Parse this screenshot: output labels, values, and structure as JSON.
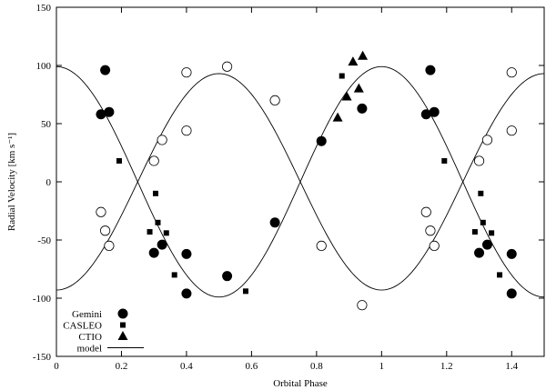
{
  "chart_data": {
    "type": "scatter",
    "title": "",
    "xlabel": "Orbital Phase",
    "ylabel": "Radial Velocity [km s⁻¹]",
    "xlim": [
      0,
      1.5
    ],
    "ylim": [
      -150,
      150
    ],
    "xticks": [
      0,
      0.2,
      0.4,
      0.6,
      0.8,
      1,
      1.2,
      1.4
    ],
    "xtick_labels": [
      "0",
      "0.2",
      "0.4",
      "0.6",
      "0.8",
      "1",
      "1.2",
      "1.4"
    ],
    "yticks": [
      -150,
      -100,
      -50,
      0,
      50,
      100,
      150
    ],
    "ytick_labels": [
      "-150",
      "-100",
      "-50",
      "0",
      "50",
      "100",
      "150"
    ],
    "grid": false,
    "legend_position": "bottom-left",
    "legend": [
      {
        "label": "Gemini",
        "marker": "filled-circle"
      },
      {
        "label": "CASLEO",
        "marker": "filled-square"
      },
      {
        "label": "CTIO",
        "marker": "filled-triangle"
      },
      {
        "label": "model",
        "marker": "line"
      }
    ],
    "series": [
      {
        "name": "Gemini",
        "component": "primary",
        "marker": "filled-circle",
        "x": [
          0.137,
          0.15,
          0.162,
          0.3,
          0.325,
          0.4,
          0.4,
          0.525,
          0.672,
          0.815,
          0.94,
          1.137,
          1.15,
          1.162,
          1.3,
          1.325,
          1.4,
          1.4
        ],
        "y": [
          58,
          96,
          60,
          -61,
          -54,
          -62,
          -96,
          -81,
          -35,
          35,
          63,
          58,
          96,
          60,
          -61,
          -54,
          -62,
          -96
        ]
      },
      {
        "name": "Gemini",
        "component": "secondary",
        "marker": "open-circle",
        "x": [
          0.137,
          0.15,
          0.162,
          0.3,
          0.325,
          0.4,
          0.4,
          0.525,
          0.672,
          0.815,
          0.94,
          1.137,
          1.15,
          1.162,
          1.3,
          1.325,
          1.4,
          1.4
        ],
        "y": [
          -26,
          -42,
          -55,
          18,
          36,
          94,
          44,
          99,
          70,
          -55,
          -106,
          -26,
          -42,
          -55,
          18,
          36,
          94,
          44
        ]
      },
      {
        "name": "CASLEO",
        "marker": "filled-square",
        "x": [
          0.193,
          0.287,
          0.305,
          0.312,
          0.338,
          0.363,
          0.582,
          0.878,
          1.193,
          1.287,
          1.305,
          1.312,
          1.338,
          1.363
        ],
        "y": [
          18,
          -43,
          -10,
          -35,
          -44,
          -80,
          -94,
          91,
          18,
          -43,
          -10,
          -35,
          -44,
          -80
        ]
      },
      {
        "name": "CTIO",
        "marker": "filled-triangle",
        "x": [
          0.865,
          0.893,
          0.912,
          0.93,
          0.942
        ],
        "y": [
          55,
          73,
          103,
          80,
          108
        ]
      },
      {
        "name": "model",
        "marker": "line",
        "curves": [
          {
            "component": "primary",
            "amplitude": 99,
            "offset": 0,
            "peak_phase": 0
          },
          {
            "component": "secondary",
            "amplitude": 93,
            "offset": 0,
            "peak_phase": 0.5
          }
        ]
      }
    ]
  }
}
